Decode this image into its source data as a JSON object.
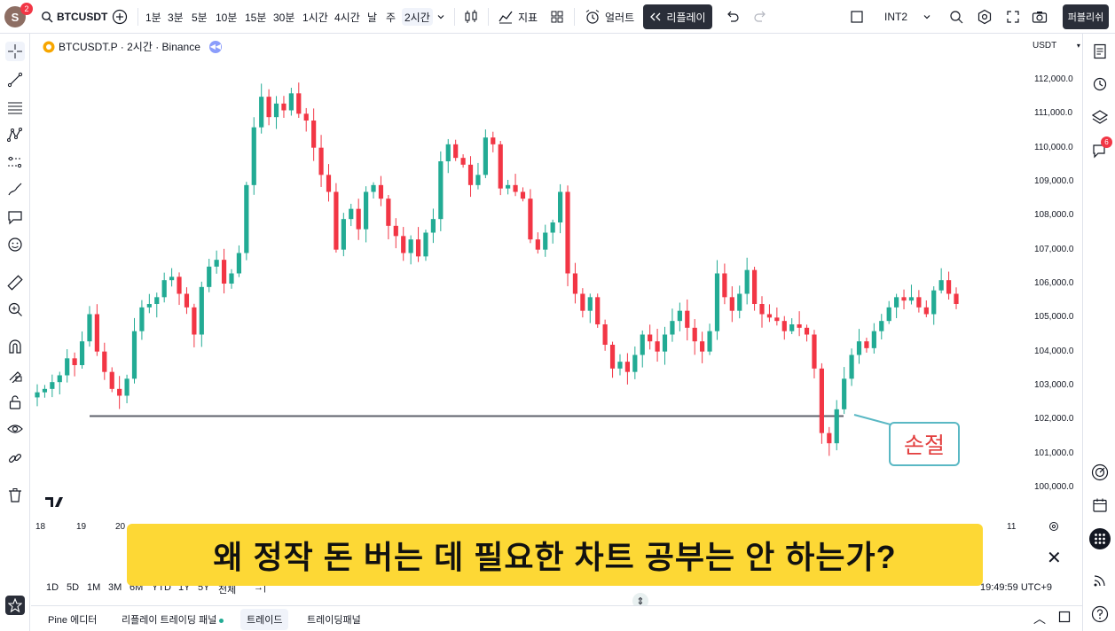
{
  "header": {
    "avatar_letter": "S",
    "avatar_badge": "2",
    "symbol": "BTCUSDT",
    "intervals": [
      "1분",
      "3분",
      "5분",
      "10분",
      "15분",
      "30분",
      "1시간",
      "4시간",
      "날",
      "주",
      "2시간"
    ],
    "active_interval": "2시간",
    "indicators_label": "지표",
    "alert_label": "얼러트",
    "replay_label": "리플레이",
    "layout_name": "INT2",
    "publish_label": "퍼블리쉬"
  },
  "legend": {
    "title": "BTCUSDT.P · 2시간 · Binance"
  },
  "price_axis": {
    "currency": "USDT",
    "labels": [
      "112,000.0",
      "111,000.0",
      "110,000.0",
      "109,000.0",
      "108,000.0",
      "107,000.0",
      "106,000.0",
      "105,000.0",
      "104,000.0",
      "103,000.0",
      "102,000.0",
      "101,000.0",
      "100,000.0"
    ]
  },
  "time_axis": {
    "labels": [
      "18",
      "19",
      "20",
      "11"
    ]
  },
  "annotation": {
    "stop_loss_label": "손절"
  },
  "subtitle": "왜 정작 돈 버는 데 필요한 차트 공부는 안 하는가?",
  "ranges": {
    "items": [
      "1D",
      "5D",
      "1M",
      "3M",
      "6M",
      "YTD",
      "1Y",
      "5Y",
      "전체"
    ],
    "clock": "19:49:59 UTC+9"
  },
  "bottom_tabs": [
    "Pine 에디터",
    "리플레이 트레이딩 패널",
    "트레이드",
    "트레이딩패널"
  ],
  "right_badge": "6",
  "chart_data": {
    "type": "candlestick",
    "y_range": [
      100000,
      112000
    ],
    "horizontal_line": 102100,
    "closes": [
      102800,
      102900,
      103100,
      103300,
      103800,
      103600,
      104300,
      105100,
      104000,
      103400,
      102900,
      102700,
      103200,
      104600,
      105300,
      105400,
      105600,
      106100,
      106200,
      105700,
      105300,
      104500,
      105900,
      106500,
      106700,
      106000,
      106300,
      106900,
      108900,
      110600,
      111500,
      110900,
      111300,
      111100,
      111600,
      111000,
      110800,
      110000,
      109200,
      108700,
      107000,
      107900,
      108200,
      107600,
      108700,
      108900,
      108500,
      107700,
      107400,
      106900,
      107300,
      106800,
      107500,
      107900,
      109600,
      110100,
      109700,
      109500,
      108900,
      109200,
      110300,
      110100,
      108800,
      108900,
      108700,
      108500,
      107300,
      107000,
      107500,
      107800,
      108700,
      106300,
      105700,
      105200,
      105600,
      104800,
      104200,
      103500,
      103700,
      103400,
      103900,
      104500,
      104300,
      104000,
      104500,
      104900,
      105200,
      104700,
      104300,
      104000,
      104600,
      106300,
      105600,
      105200,
      105700,
      106400,
      105400,
      105100,
      105000,
      104900,
      104600,
      104800,
      104700,
      104500,
      103500,
      101600,
      101300,
      102300,
      103200,
      103900,
      104300,
      104100,
      104600,
      104900,
      105300,
      105600,
      105500,
      105600,
      105300,
      105100,
      105800,
      106100,
      105700,
      105400
    ]
  }
}
